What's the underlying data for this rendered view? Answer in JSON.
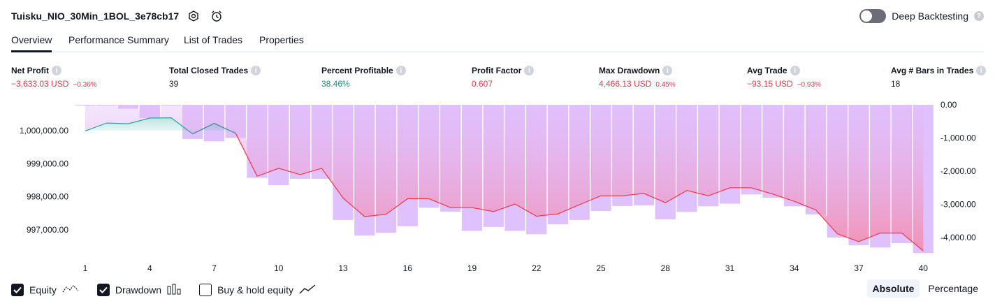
{
  "header": {
    "title": "Tuisku_NIO_30Min_1BOL_3e78cb17",
    "icons": [
      "settings-icon",
      "alarm-add-icon"
    ],
    "deep_backtesting": {
      "label": "Deep Backtesting",
      "enabled": false,
      "help": "?"
    }
  },
  "tabs": [
    {
      "label": "Overview",
      "active": true
    },
    {
      "label": "Performance Summary",
      "active": false
    },
    {
      "label": "List of Trades",
      "active": false
    },
    {
      "label": "Properties",
      "active": false
    }
  ],
  "metrics": [
    {
      "label": "Net Profit",
      "value": "−3,633.03 USD",
      "percent": "−0.36%",
      "tone": "neg"
    },
    {
      "label": "Total Closed Trades",
      "value": "39",
      "percent": "",
      "tone": "neu"
    },
    {
      "label": "Percent Profitable",
      "value": "38.46%",
      "percent": "",
      "tone": "pos"
    },
    {
      "label": "Profit Factor",
      "value": "0.607",
      "percent": "",
      "tone": "neg"
    },
    {
      "label": "Max Drawdown",
      "value": "4,466.13 USD",
      "percent": "0.45%",
      "tone": "neg"
    },
    {
      "label": "Avg Trade",
      "value": "−93.15 USD",
      "percent": "−0.93%",
      "tone": "neg"
    },
    {
      "label": "Avg # Bars in Trades",
      "value": "18",
      "percent": "",
      "tone": "neu"
    }
  ],
  "chart_data": {
    "type": "line",
    "x_ticks": [
      "1",
      "4",
      "7",
      "10",
      "13",
      "16",
      "19",
      "22",
      "25",
      "28",
      "31",
      "34",
      "37",
      "40"
    ],
    "left_axis": {
      "ticks": [
        "1,000,000.00",
        "999,000.00",
        "998,000.00",
        "997,000.00"
      ],
      "values": [
        1000000,
        999000,
        998000,
        997000
      ]
    },
    "right_axis": {
      "ticks": [
        "0.00",
        "-1,000.00",
        "-2,000.00",
        "-3,000.00",
        "-4,000.00"
      ],
      "values": [
        0,
        -1000,
        -2000,
        -3000,
        -4000
      ]
    },
    "series": [
      {
        "name": "Equity",
        "color": "#f23645",
        "x": [
          1,
          2,
          3,
          4,
          5,
          6,
          7,
          8,
          9,
          10,
          11,
          12,
          13,
          14,
          15,
          16,
          17,
          18,
          19,
          20,
          21,
          22,
          23,
          24,
          25,
          26,
          27,
          28,
          29,
          30,
          31,
          32,
          33,
          34,
          35,
          36,
          37,
          38,
          39,
          40
        ],
        "values": [
          999990,
          1000230,
          1000210,
          1000380,
          1000390,
          999900,
          1000220,
          999920,
          998620,
          998860,
          998670,
          998860,
          997960,
          997400,
          997470,
          997940,
          997940,
          997670,
          997670,
          997550,
          997780,
          997410,
          997480,
          997760,
          998030,
          998030,
          998100,
          997820,
          998190,
          998030,
          998270,
          998270,
          998080,
          997860,
          997600,
          996880,
          996640,
          996900,
          996900,
          996360
        ]
      },
      {
        "name": "Drawdown",
        "color": "#ce93d8",
        "x": [
          1,
          2,
          3,
          4,
          5,
          6,
          7,
          8,
          9,
          10,
          11,
          12,
          13,
          14,
          15,
          16,
          17,
          18,
          19,
          20,
          21,
          22,
          23,
          24,
          25,
          26,
          27,
          28,
          29,
          30,
          31,
          32,
          33,
          34,
          35,
          36,
          37,
          38,
          39,
          40
        ],
        "values": [
          -10,
          -20,
          -120,
          -400,
          -10,
          -1030,
          -1100,
          -1000,
          -2200,
          -2420,
          -2230,
          -2230,
          -3470,
          -3940,
          -3860,
          -3660,
          -3100,
          -3220,
          -3800,
          -3680,
          -3800,
          -3900,
          -3600,
          -3470,
          -3200,
          -3050,
          -3030,
          -3450,
          -3230,
          -3060,
          -2980,
          -2700,
          -2800,
          -3060,
          -3300,
          -4000,
          -4230,
          -4300,
          -4170,
          -4470
        ]
      }
    ]
  },
  "legend": [
    {
      "label": "Equity",
      "checked": true,
      "icon": "equity-line-icon"
    },
    {
      "label": "Drawdown",
      "checked": true,
      "icon": "drawdown-bars-icon"
    },
    {
      "label": "Buy & hold equity",
      "checked": false,
      "icon": "buy-hold-line-icon"
    }
  ],
  "view_modes": [
    {
      "label": "Absolute",
      "active": true
    },
    {
      "label": "Percentage",
      "active": false
    }
  ]
}
